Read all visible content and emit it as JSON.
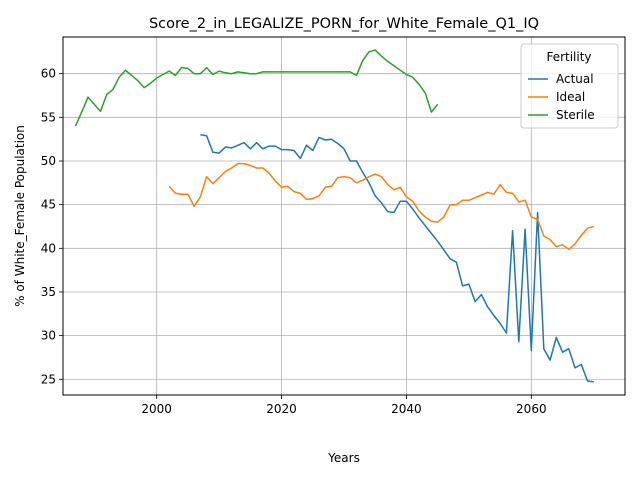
{
  "chart_data": {
    "type": "line",
    "title": "Score_2_in_LEGALIZE_PORN_for_White_Female_Q1_IQ",
    "xlabel": "Years",
    "ylabel": "% of White_Female Population",
    "xlim": [
      1985,
      2075
    ],
    "ylim": [
      23.2,
      64.2
    ],
    "xticks": [
      2000,
      2020,
      2040,
      2060
    ],
    "yticks": [
      25,
      30,
      35,
      40,
      45,
      50,
      55,
      60
    ],
    "grid": true,
    "legend": {
      "title": "Fertility",
      "placement": "top-right"
    },
    "series": [
      {
        "name": "Actual",
        "color": "#1f77b4",
        "x": [
          2007,
          2008,
          2009,
          2010,
          2011,
          2012,
          2013,
          2014,
          2015,
          2016,
          2017,
          2018,
          2019,
          2020,
          2021,
          2022,
          2023,
          2024,
          2025,
          2026,
          2027,
          2028,
          2029,
          2030,
          2031,
          2032,
          2033,
          2034,
          2035,
          2036,
          2037,
          2038,
          2039,
          2040,
          2041,
          2042,
          2043,
          2044,
          2045,
          2046,
          2047,
          2048,
          2049,
          2050,
          2051,
          2052,
          2053,
          2054,
          2055,
          2056,
          2057,
          2058,
          2059,
          2060,
          2061,
          2062,
          2063,
          2064,
          2065,
          2066,
          2067,
          2068,
          2069,
          2070
        ],
        "y": [
          53.0,
          52.9,
          51.0,
          50.9,
          51.6,
          51.5,
          51.8,
          52.1,
          51.4,
          52.1,
          51.4,
          51.7,
          51.7,
          51.3,
          51.3,
          51.2,
          50.3,
          51.8,
          51.2,
          52.7,
          52.4,
          52.5,
          52.0,
          51.4,
          50.0,
          50.0,
          48.7,
          47.5,
          46.0,
          45.2,
          44.2,
          44.1,
          45.4,
          45.4,
          44.5,
          43.5,
          42.6,
          41.7,
          40.8,
          39.8,
          38.8,
          38.4,
          35.7,
          35.9,
          33.9,
          34.7,
          33.3,
          32.3,
          31.4,
          30.3,
          42.0,
          29.3,
          42.2,
          28.3,
          44.1,
          28.5,
          27.2,
          29.8,
          28.1,
          28.5,
          26.3,
          26.7,
          24.8,
          24.7
        ]
      },
      {
        "name": "Ideal",
        "color": "#ff7f0e",
        "x": [
          2002,
          2003,
          2004,
          2005,
          2006,
          2007,
          2008,
          2009,
          2010,
          2011,
          2012,
          2013,
          2014,
          2015,
          2016,
          2017,
          2018,
          2019,
          2020,
          2021,
          2022,
          2023,
          2024,
          2025,
          2026,
          2027,
          2028,
          2029,
          2030,
          2031,
          2032,
          2033,
          2034,
          2035,
          2036,
          2037,
          2038,
          2039,
          2040,
          2041,
          2042,
          2043,
          2044,
          2045,
          2046,
          2047,
          2048,
          2049,
          2050,
          2051,
          2052,
          2053,
          2054,
          2055,
          2056,
          2057,
          2058,
          2059,
          2060,
          2061,
          2062,
          2063,
          2064,
          2065,
          2066,
          2067,
          2068,
          2069,
          2070
        ],
        "y": [
          47.1,
          46.3,
          46.2,
          46.2,
          44.8,
          45.9,
          48.2,
          47.4,
          48.1,
          48.8,
          49.2,
          49.7,
          49.7,
          49.5,
          49.2,
          49.2,
          48.6,
          47.7,
          47.0,
          47.1,
          46.5,
          46.3,
          45.6,
          45.7,
          46.0,
          47.0,
          47.1,
          48.1,
          48.2,
          48.1,
          47.5,
          47.8,
          48.2,
          48.5,
          48.2,
          47.3,
          46.7,
          47.0,
          45.9,
          45.4,
          44.3,
          43.6,
          43.1,
          43.0,
          43.6,
          45.0,
          45.0,
          45.5,
          45.5,
          45.8,
          46.1,
          46.4,
          46.2,
          47.3,
          46.4,
          46.3,
          45.3,
          45.5,
          43.6,
          43.3,
          41.4,
          41.0,
          40.2,
          40.4,
          39.9,
          40.5,
          41.5,
          42.3,
          42.5
        ]
      },
      {
        "name": "Sterile",
        "color": "#2ca02c",
        "x": [
          1987,
          1988,
          1989,
          1990,
          1991,
          1992,
          1993,
          1994,
          1995,
          1996,
          1997,
          1998,
          1999,
          2000,
          2001,
          2002,
          2003,
          2004,
          2005,
          2006,
          2007,
          2008,
          2009,
          2010,
          2011,
          2012,
          2013,
          2014,
          2015,
          2016,
          2017,
          2018,
          2019,
          2020,
          2021,
          2022,
          2023,
          2024,
          2025,
          2026,
          2027,
          2028,
          2029,
          2030,
          2031,
          2032,
          2033,
          2034,
          2035,
          2036,
          2037,
          2038,
          2039,
          2040,
          2041,
          2042,
          2043,
          2044,
          2045
        ],
        "y": [
          54.0,
          55.6,
          57.3,
          56.5,
          55.7,
          57.6,
          58.2,
          59.6,
          60.4,
          59.8,
          59.2,
          58.4,
          58.9,
          59.5,
          59.9,
          60.3,
          59.8,
          60.7,
          60.6,
          60.0,
          60.0,
          60.7,
          59.9,
          60.3,
          60.1,
          60.0,
          60.2,
          60.1,
          60.0,
          60.0,
          60.2,
          60.2,
          60.2,
          60.2,
          60.2,
          60.2,
          60.2,
          60.2,
          60.2,
          60.2,
          60.2,
          60.2,
          60.2,
          60.2,
          60.2,
          59.8,
          61.5,
          62.5,
          62.7,
          62.0,
          61.4,
          60.9,
          60.4,
          59.9,
          59.6,
          58.8,
          57.8,
          55.6,
          56.5
        ]
      }
    ]
  }
}
